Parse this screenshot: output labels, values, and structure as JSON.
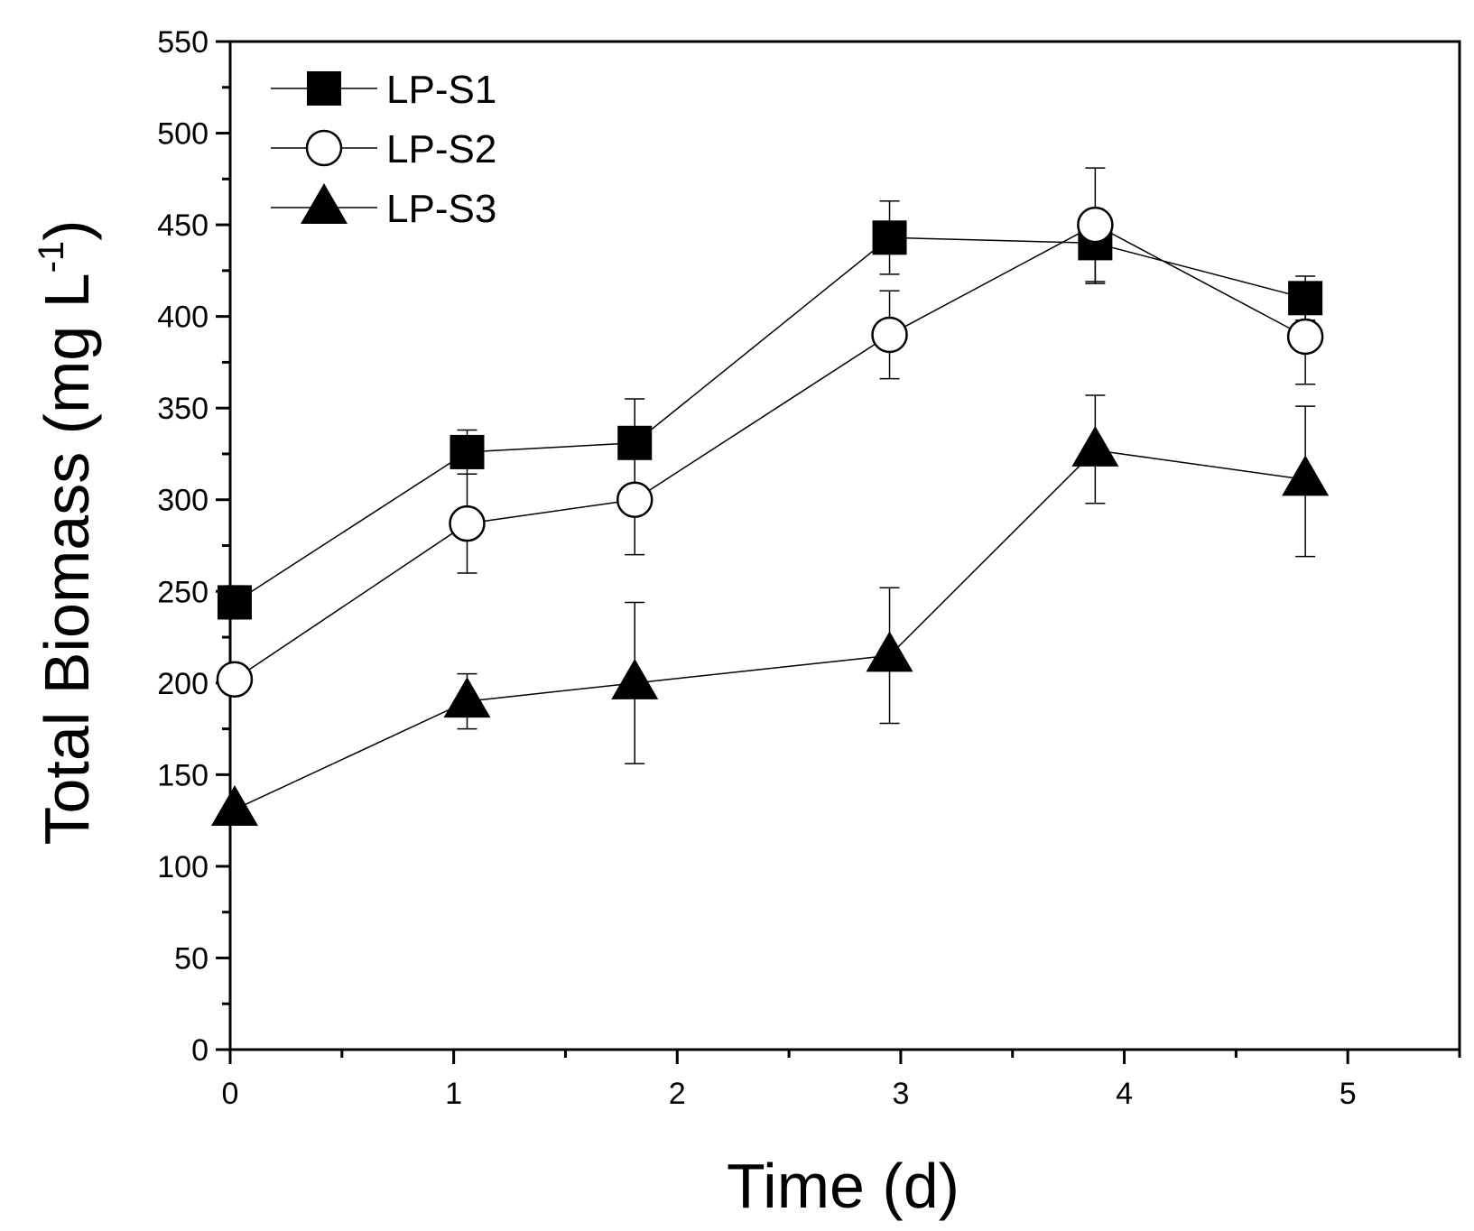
{
  "chart_data": {
    "type": "line",
    "title": "",
    "xlabel": "Time (d)",
    "ylabel": "Total Biomass (mg L",
    "ylabel_superscript": "-1",
    "ylabel_close": ")",
    "xlim": [
      0,
      5.5
    ],
    "ylim": [
      0,
      550
    ],
    "xticks": [
      0,
      1,
      2,
      3,
      4,
      5
    ],
    "xtick_labels": [
      "0",
      "1",
      "2",
      "3",
      "4",
      "5"
    ],
    "yticks": [
      0,
      50,
      100,
      150,
      200,
      250,
      300,
      350,
      400,
      450,
      500,
      550
    ],
    "ytick_labels": [
      "0",
      "50",
      "100",
      "150",
      "200",
      "250",
      "300",
      "350",
      "400",
      "450",
      "500",
      "550"
    ],
    "grid": false,
    "legend_position": "top-left",
    "series": [
      {
        "name": "LP-S1",
        "marker": "filled-square",
        "x": [
          0.02,
          1.06,
          1.81,
          2.95,
          3.87,
          4.81
        ],
        "y": [
          244,
          326,
          331,
          443,
          440,
          410
        ],
        "err_up": [
          9,
          12,
          24,
          20,
          12,
          12
        ],
        "err_down": [
          9,
          12,
          24,
          20,
          22,
          12
        ]
      },
      {
        "name": "LP-S2",
        "marker": "open-circle",
        "x": [
          0.02,
          1.06,
          1.81,
          2.95,
          3.87,
          4.81
        ],
        "y": [
          202,
          287,
          300,
          390,
          450,
          389
        ],
        "err_up": [
          0,
          27,
          30,
          24,
          31,
          13
        ],
        "err_down": [
          0,
          27,
          30,
          24,
          31,
          26
        ]
      },
      {
        "name": "LP-S3",
        "marker": "filled-triangle",
        "x": [
          0.02,
          1.06,
          1.81,
          2.95,
          3.87,
          4.81
        ],
        "y": [
          131,
          190,
          200,
          215,
          327,
          311
        ],
        "err_up": [
          0,
          15,
          44,
          37,
          30,
          40
        ],
        "err_down": [
          0,
          15,
          44,
          37,
          29,
          42
        ]
      }
    ]
  }
}
